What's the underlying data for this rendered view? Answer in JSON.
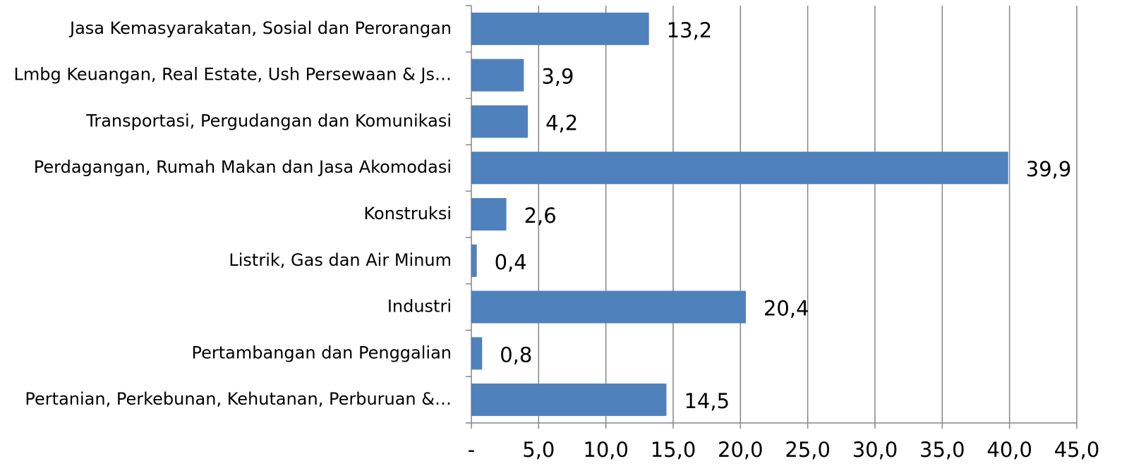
{
  "chart_data": {
    "type": "bar",
    "orientation": "horizontal",
    "categories": [
      "Jasa Kemasyarakatan, Sosial dan Perorangan",
      "Lmbg Keuangan, Real Estate, Ush Persewaan & Js…",
      "Transportasi, Pergudangan dan Komunikasi",
      "Perdagangan, Rumah Makan dan Jasa Akomodasi",
      "Konstruksi",
      "Listrik, Gas dan Air Minum",
      "Industri",
      "Pertambangan dan Penggalian",
      "Pertanian, Perkebunan, Kehutanan, Perburuan &…"
    ],
    "values": [
      13.2,
      3.9,
      4.2,
      39.9,
      2.6,
      0.4,
      20.4,
      0.8,
      14.5
    ],
    "value_labels": [
      "13,2",
      "3,9",
      "4,2",
      "39,9",
      "2,6",
      "0,4",
      "20,4",
      "0,8",
      "14,5"
    ],
    "color": "#4f81bd",
    "xlim": [
      0,
      45
    ],
    "xticks": [
      {
        "value": 0,
        "label": "-"
      },
      {
        "value": 5,
        "label": "5,0"
      },
      {
        "value": 10,
        "label": "10,0"
      },
      {
        "value": 15,
        "label": "15,0"
      },
      {
        "value": 20,
        "label": "20,0"
      },
      {
        "value": 25,
        "label": "25,0"
      },
      {
        "value": 30,
        "label": "30,0"
      },
      {
        "value": 35,
        "label": "35,0"
      },
      {
        "value": 40,
        "label": "40,0"
      },
      {
        "value": 45,
        "label": "45,0"
      }
    ],
    "grid": true
  }
}
